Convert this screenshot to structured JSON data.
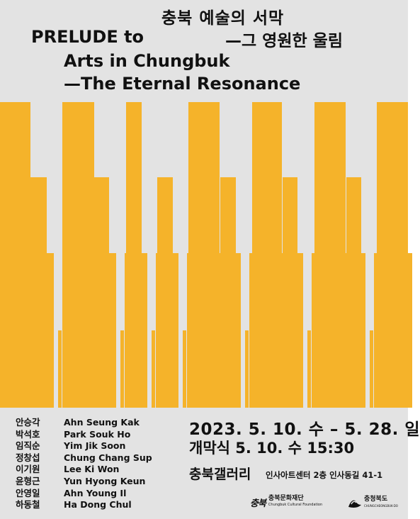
{
  "title": {
    "korean_line1": "충북 예술의 서막",
    "english_line1": "PRELUDE to",
    "korean_line2": "—그 영원한 울림",
    "english_line2": "Arts in Chungbuk",
    "english_line3": "—The Eternal Resonance"
  },
  "colors": {
    "background": "#e3e3e3",
    "accent": "#f5b32a",
    "text": "#111111"
  },
  "artists": [
    {
      "ko": "안승각",
      "en": "Ahn Seung Kak"
    },
    {
      "ko": "박석호",
      "en": "Park Souk Ho"
    },
    {
      "ko": "임직순",
      "en": "Yim Jik Soon"
    },
    {
      "ko": "정창섭",
      "en": "Chung Chang Sup"
    },
    {
      "ko": "이기원",
      "en": "Lee Ki Won"
    },
    {
      "ko": "윤형근",
      "en": "Yun Hyong Keun"
    },
    {
      "ko": "안영일",
      "en": "Ahn Young Il"
    },
    {
      "ko": "하동철",
      "en": "Ha Dong Chul"
    }
  ],
  "event": {
    "dates": "2023. 5. 10. 수 – 5. 28. 일",
    "opening": "개막식  5. 10. 수  15:30",
    "venue": "충북갤러리",
    "address": "인사아트센터 2층 인사동길 41-1"
  },
  "logos": {
    "foundation_mark": "충북",
    "foundation_name": "충북문화재단",
    "foundation_sub": "Chungbuk Cultural Foundation",
    "province_name": "충청북도",
    "province_sub": "CHUNGCHEONGBUK-DO",
    "province_icon": "province-emblem-icon"
  }
}
